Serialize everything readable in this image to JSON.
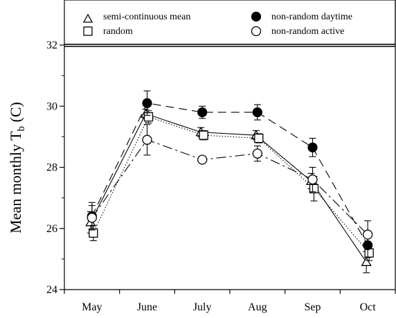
{
  "chart_data": {
    "type": "line",
    "categories": [
      "May",
      "June",
      "July",
      "Aug",
      "Sep",
      "Oct"
    ],
    "ylabel": "Mean monthly T",
    "ylabel_subscript": "b",
    "ylabel_suffix": " (C)",
    "ylim": [
      24,
      32
    ],
    "yticks": [
      24,
      26,
      28,
      30,
      32
    ],
    "grid": false,
    "legend_position": "top",
    "series": [
      {
        "name": "semi-continuous mean",
        "marker": "triangle-open",
        "line": "solid",
        "values": [
          26.2,
          29.75,
          29.15,
          29.05,
          27.55,
          24.9
        ],
        "errors": [
          0.35,
          0.15,
          0.15,
          0.15,
          0.25,
          0.35
        ]
      },
      {
        "name": "random",
        "marker": "square-open",
        "line": "dotted",
        "values": [
          25.85,
          29.65,
          29.05,
          28.95,
          27.3,
          25.2
        ],
        "errors": [
          0.25,
          0.2,
          0.15,
          0.15,
          0.4,
          0.25
        ]
      },
      {
        "name": "non-random daytime",
        "marker": "circle-filled",
        "line": "dash",
        "values": [
          26.4,
          30.1,
          29.8,
          29.8,
          28.65,
          25.45
        ],
        "errors": [
          0.45,
          0.4,
          0.2,
          0.25,
          0.3,
          0.4
        ]
      },
      {
        "name": "non-random active",
        "marker": "circle-open",
        "line": "dashdot",
        "values": [
          26.35,
          28.9,
          28.25,
          28.45,
          27.6,
          25.8
        ],
        "errors": [
          0.4,
          0.5,
          0.1,
          0.25,
          0.4,
          0.45
        ]
      }
    ]
  }
}
